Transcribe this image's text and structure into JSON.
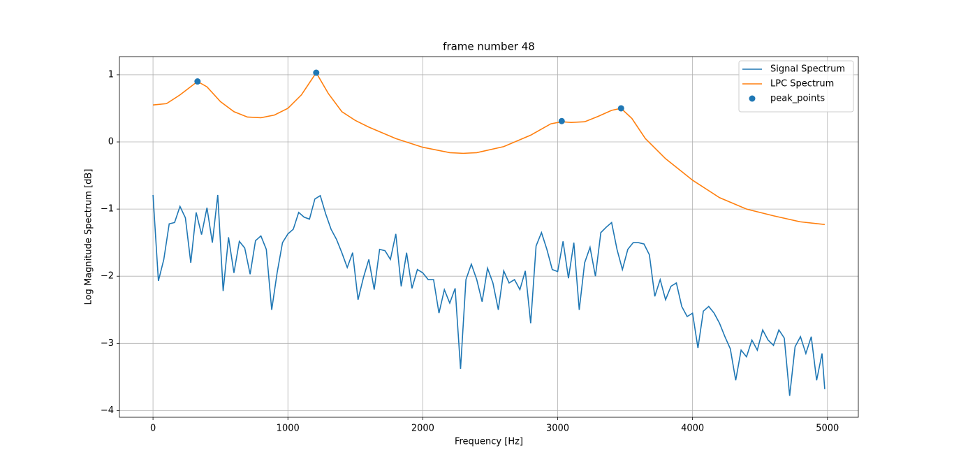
{
  "chart_data": {
    "type": "line",
    "title": "frame number 48",
    "xlabel": "Frequency [Hz]",
    "ylabel": "Log Magnitude Spectrum [dB]",
    "xlim": [
      -249,
      5229
    ],
    "ylim": [
      -4.1,
      1.27
    ],
    "xticks": [
      0,
      1000,
      2000,
      3000,
      4000,
      5000
    ],
    "yticks": [
      {
        "value": -4,
        "label": "−4"
      },
      {
        "value": -3,
        "label": "−3"
      },
      {
        "value": -2,
        "label": "−2"
      },
      {
        "value": -1,
        "label": "−1"
      },
      0,
      1
    ],
    "grid": true,
    "legend": "upper right",
    "series": [
      {
        "name": "Signal Spectrum",
        "type": "line",
        "color": "#1f77b4",
        "x": [
          0,
          40,
          80,
          120,
          160,
          200,
          240,
          280,
          320,
          360,
          400,
          440,
          480,
          520,
          560,
          600,
          640,
          680,
          720,
          760,
          800,
          840,
          880,
          920,
          960,
          1000,
          1040,
          1080,
          1120,
          1160,
          1200,
          1240,
          1280,
          1320,
          1360,
          1400,
          1440,
          1480,
          1520,
          1560,
          1600,
          1640,
          1680,
          1720,
          1760,
          1800,
          1840,
          1880,
          1920,
          1960,
          2000,
          2040,
          2080,
          2120,
          2160,
          2200,
          2240,
          2280,
          2320,
          2360,
          2400,
          2440,
          2480,
          2520,
          2560,
          2600,
          2640,
          2680,
          2720,
          2760,
          2800,
          2840,
          2880,
          2920,
          2960,
          3000,
          3040,
          3080,
          3120,
          3160,
          3200,
          3240,
          3280,
          3320,
          3360,
          3400,
          3440,
          3480,
          3520,
          3560,
          3600,
          3640,
          3680,
          3720,
          3760,
          3800,
          3840,
          3880,
          3920,
          3960,
          4000,
          4040,
          4080,
          4120,
          4160,
          4200,
          4240,
          4280,
          4320,
          4360,
          4400,
          4440,
          4480,
          4520,
          4560,
          4600,
          4640,
          4680,
          4720,
          4760,
          4800,
          4840,
          4880,
          4920,
          4960,
          4980
        ],
        "values": [
          -0.79,
          -2.07,
          -1.75,
          -1.22,
          -1.2,
          -0.96,
          -1.13,
          -1.8,
          -1.05,
          -1.38,
          -0.98,
          -1.5,
          -0.79,
          -2.22,
          -1.42,
          -1.95,
          -1.48,
          -1.58,
          -1.97,
          -1.47,
          -1.4,
          -1.6,
          -2.5,
          -1.95,
          -1.5,
          -1.37,
          -1.3,
          -1.05,
          -1.12,
          -1.15,
          -0.85,
          -0.8,
          -1.07,
          -1.3,
          -1.45,
          -1.65,
          -1.87,
          -1.65,
          -2.35,
          -2.02,
          -1.75,
          -2.2,
          -1.6,
          -1.62,
          -1.75,
          -1.37,
          -2.15,
          -1.65,
          -2.18,
          -1.9,
          -1.95,
          -2.05,
          -2.05,
          -2.55,
          -2.2,
          -2.4,
          -2.18,
          -3.38,
          -2.05,
          -1.82,
          -2.05,
          -2.38,
          -1.88,
          -2.1,
          -2.5,
          -1.92,
          -2.1,
          -2.05,
          -2.2,
          -1.92,
          -2.7,
          -1.55,
          -1.35,
          -1.6,
          -1.9,
          -1.93,
          -1.48,
          -2.03,
          -1.5,
          -2.5,
          -1.8,
          -1.57,
          -2.0,
          -1.35,
          -1.27,
          -1.2,
          -1.6,
          -1.9,
          -1.6,
          -1.5,
          -1.5,
          -1.52,
          -1.68,
          -2.3,
          -2.05,
          -2.35,
          -2.15,
          -2.1,
          -2.45,
          -2.6,
          -2.55,
          -3.07,
          -2.52,
          -2.45,
          -2.55,
          -2.7,
          -2.9,
          -3.08,
          -3.55,
          -3.1,
          -3.2,
          -2.95,
          -3.1,
          -2.8,
          -2.95,
          -3.03,
          -2.8,
          -2.92,
          -3.78,
          -3.05,
          -2.9,
          -3.15,
          -2.9,
          -3.55,
          -3.15,
          -3.68
        ]
      },
      {
        "name": "LPC Spectrum",
        "type": "line",
        "color": "#ff7f0e",
        "x": [
          0,
          100,
          200,
          330,
          400,
          500,
          600,
          700,
          800,
          900,
          1000,
          1100,
          1210,
          1300,
          1400,
          1500,
          1600,
          1800,
          2000,
          2200,
          2300,
          2400,
          2600,
          2800,
          2950,
          3030,
          3100,
          3200,
          3300,
          3400,
          3470,
          3550,
          3650,
          3800,
          4000,
          4200,
          4400,
          4600,
          4800,
          4980
        ],
        "values": [
          0.55,
          0.57,
          0.7,
          0.9,
          0.82,
          0.6,
          0.45,
          0.37,
          0.36,
          0.4,
          0.5,
          0.7,
          1.03,
          0.72,
          0.45,
          0.32,
          0.22,
          0.05,
          -0.08,
          -0.16,
          -0.17,
          -0.16,
          -0.07,
          0.1,
          0.27,
          0.3,
          0.29,
          0.3,
          0.38,
          0.47,
          0.5,
          0.35,
          0.05,
          -0.25,
          -0.57,
          -0.83,
          -1.0,
          -1.1,
          -1.19,
          -1.23
        ]
      },
      {
        "name": "peak_points",
        "type": "scatter",
        "color": "#1f77b4",
        "x": [
          330,
          1210,
          3030,
          3470
        ],
        "values": [
          0.9,
          1.03,
          0.31,
          0.5
        ]
      }
    ]
  }
}
